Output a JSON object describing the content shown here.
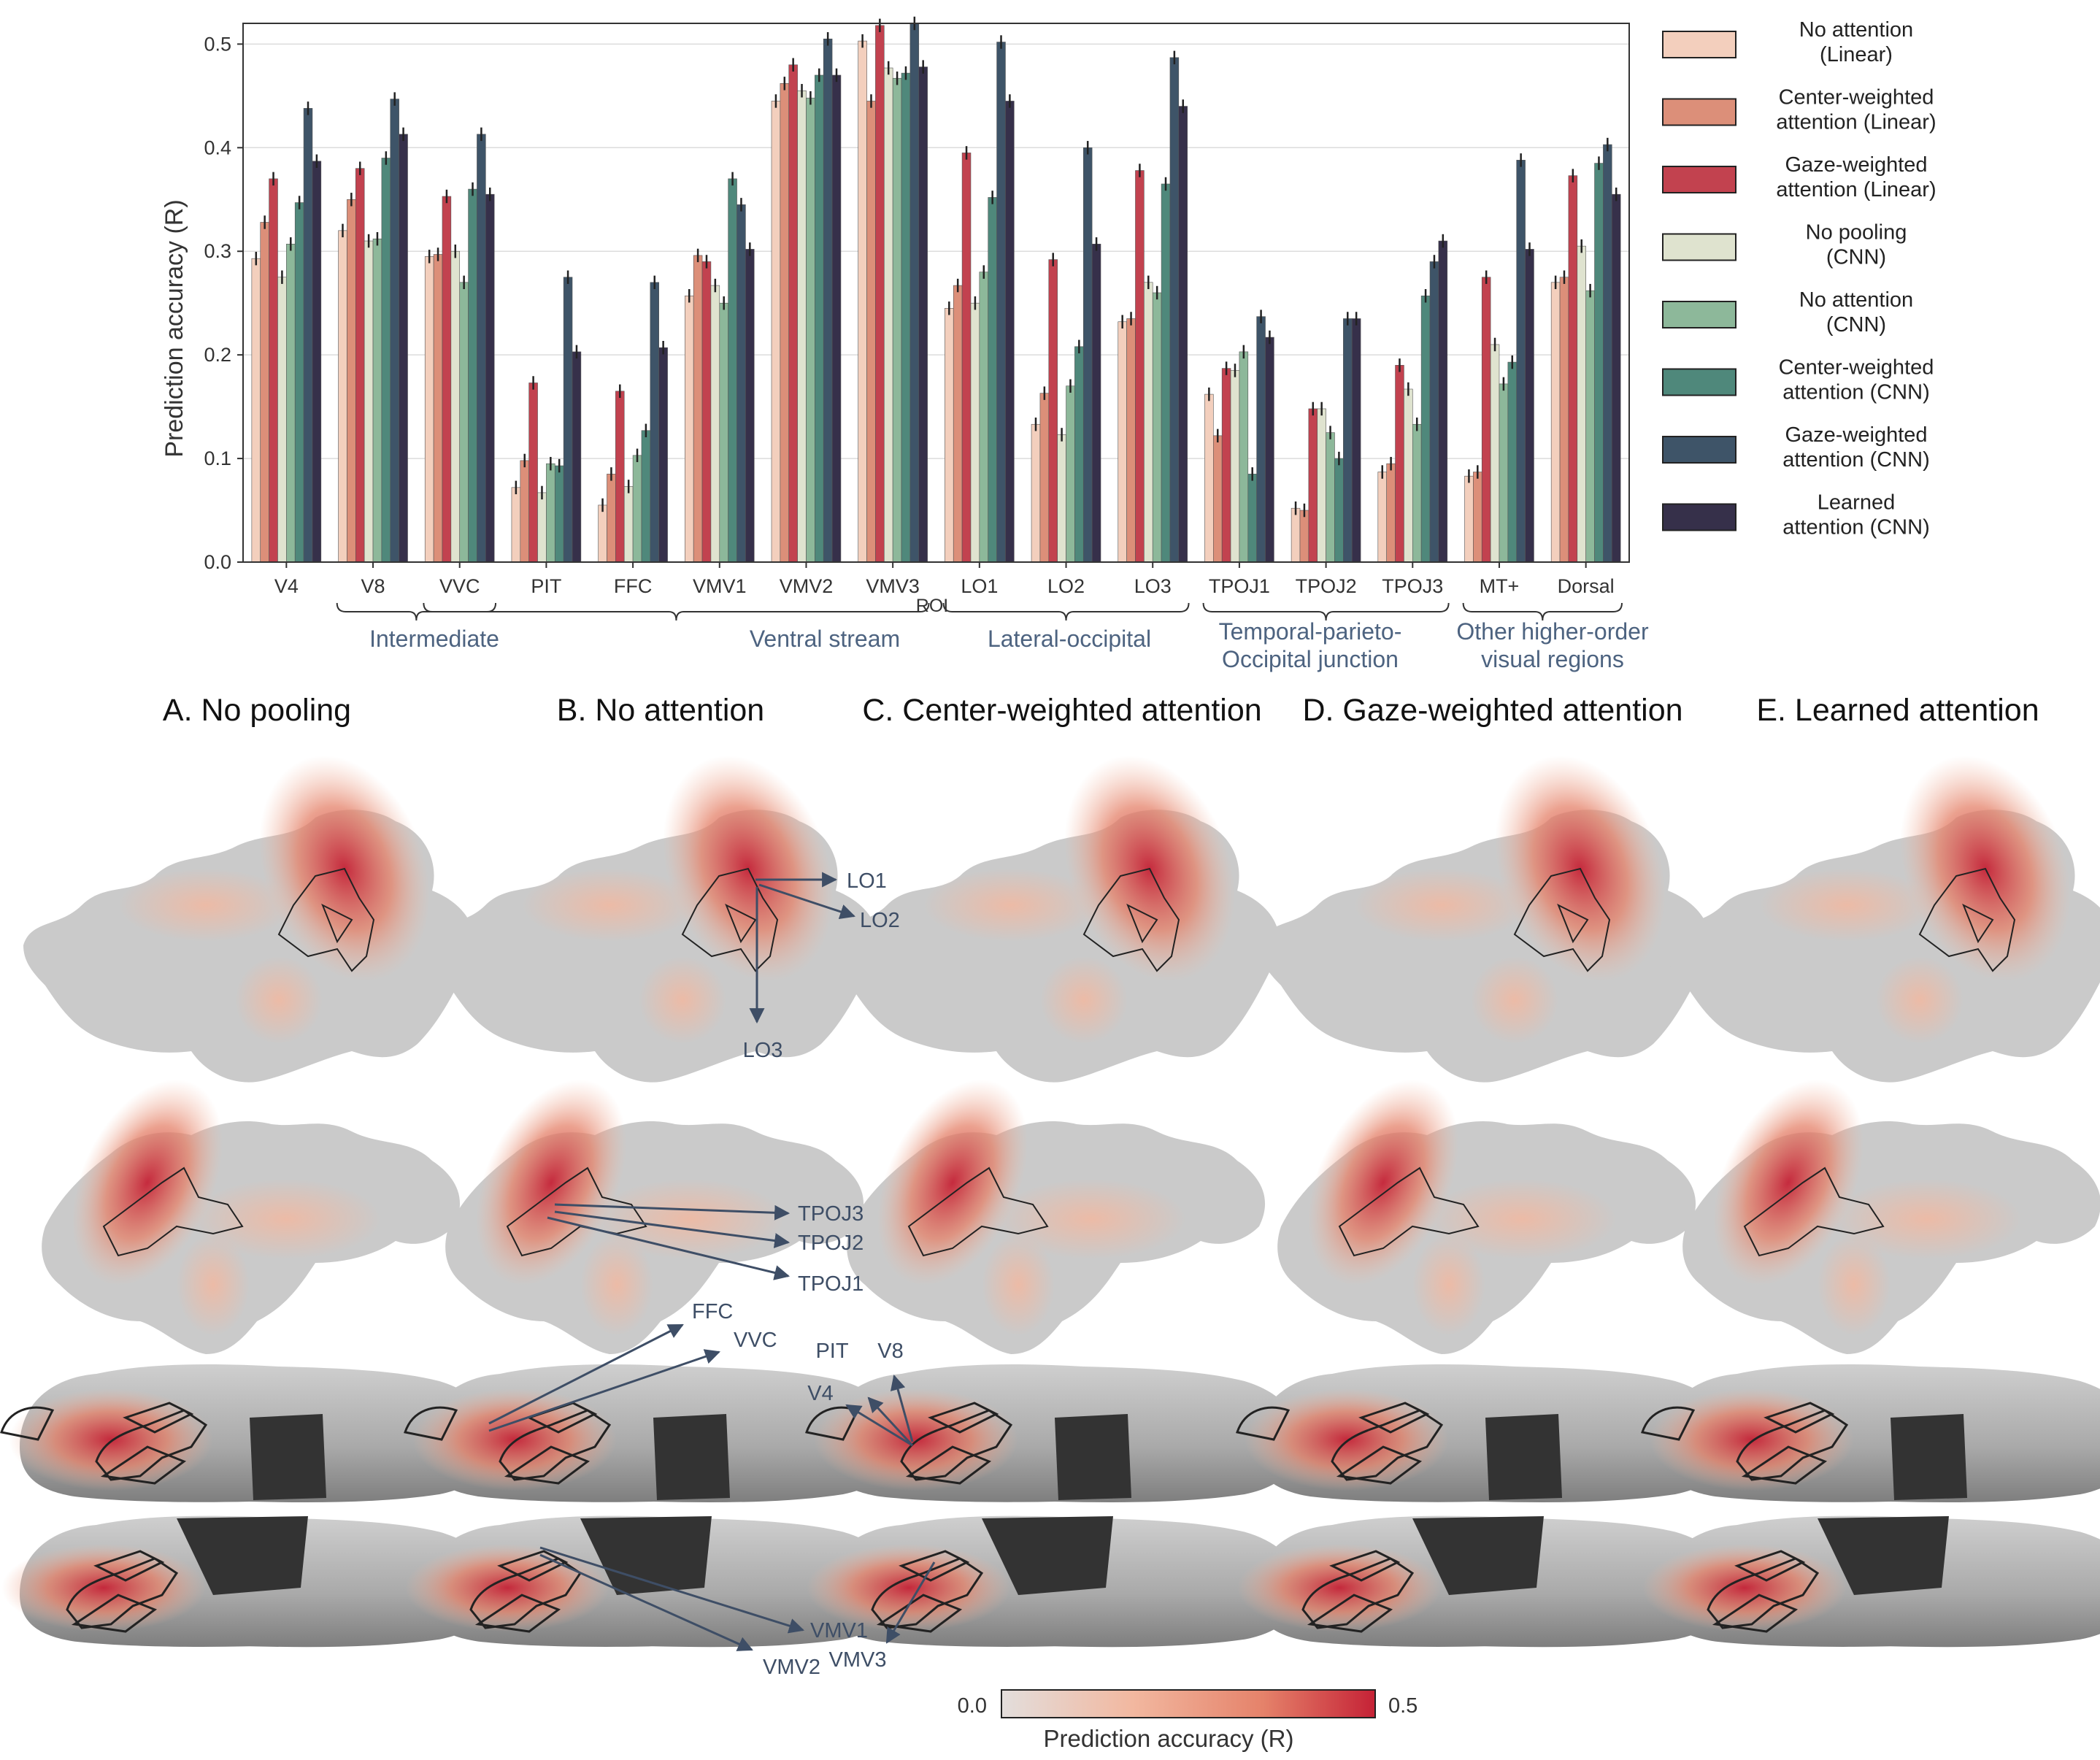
{
  "chart_data": {
    "type": "bar",
    "ylabel": "Prediction accuracy (R)",
    "xlabel": "ROI",
    "ylim": [
      0,
      0.5
    ],
    "yticks": [
      "0.0",
      "0.1",
      "0.2",
      "0.3",
      "0.4",
      "0.5"
    ],
    "grid": "horizontal",
    "legend_position": "right",
    "categories": [
      "V4",
      "V8",
      "VVC",
      "PIT",
      "FFC",
      "VMV1",
      "VMV2",
      "VMV3",
      "LO1",
      "LO2",
      "LO3",
      "TPOJ1",
      "TPOJ2",
      "TPOJ3",
      "MT+",
      "Dorsal"
    ],
    "series": [
      {
        "name": "No attention\n(Linear)",
        "color": "#f3cfbd",
        "values": [
          0.293,
          0.32,
          0.295,
          0.072,
          0.055,
          0.257,
          0.445,
          0.503,
          0.245,
          0.133,
          0.232,
          0.162,
          0.052,
          0.087,
          0.083,
          0.27
        ]
      },
      {
        "name": "Center-weighted\nattention (Linear)",
        "color": "#dc8f79",
        "values": [
          0.328,
          0.35,
          0.297,
          0.098,
          0.085,
          0.296,
          0.462,
          0.445,
          0.267,
          0.163,
          0.235,
          0.122,
          0.05,
          0.095,
          0.087,
          0.275
        ]
      },
      {
        "name": "Gaze-weighted\nattention (Linear)",
        "color": "#c2424f",
        "values": [
          0.37,
          0.38,
          0.353,
          0.173,
          0.165,
          0.29,
          0.48,
          0.518,
          0.395,
          0.292,
          0.378,
          0.187,
          0.148,
          0.19,
          0.275,
          0.373
        ]
      },
      {
        "name": "No pooling\n(CNN)",
        "color": "#dfe3cf",
        "values": [
          0.275,
          0.31,
          0.3,
          0.067,
          0.073,
          0.267,
          0.455,
          0.477,
          0.25,
          0.123,
          0.27,
          0.185,
          0.148,
          0.167,
          0.21,
          0.305
        ]
      },
      {
        "name": "No attention\n(CNN)",
        "color": "#8db89a",
        "values": [
          0.307,
          0.312,
          0.27,
          0.095,
          0.103,
          0.25,
          0.448,
          0.467,
          0.28,
          0.17,
          0.26,
          0.203,
          0.125,
          0.133,
          0.172,
          0.262
        ]
      },
      {
        "name": "Center-weighted\nattention (CNN)",
        "color": "#4f887b",
        "values": [
          0.347,
          0.39,
          0.36,
          0.093,
          0.127,
          0.37,
          0.47,
          0.472,
          0.352,
          0.208,
          0.365,
          0.085,
          0.1,
          0.257,
          0.193,
          0.385
        ]
      },
      {
        "name": "Gaze-weighted\nattention (CNN)",
        "color": "#3e5468",
        "values": [
          0.438,
          0.447,
          0.413,
          0.275,
          0.27,
          0.345,
          0.505,
          0.52,
          0.502,
          0.4,
          0.487,
          0.237,
          0.235,
          0.29,
          0.388,
          0.403
        ]
      },
      {
        "name": "Learned\nattention (CNN)",
        "color": "#36304a",
        "values": [
          0.387,
          0.413,
          0.355,
          0.203,
          0.207,
          0.302,
          0.47,
          0.478,
          0.445,
          0.307,
          0.44,
          0.217,
          0.235,
          0.31,
          0.302,
          0.355
        ]
      }
    ],
    "groups": [
      {
        "label": "Intermediate"
      },
      {
        "label": "Ventral stream"
      },
      {
        "label": "Lateral-occipital"
      },
      {
        "label": "Temporal-parieto-\nOccipital junction"
      },
      {
        "label": "Other higher-order\nvisual regions"
      }
    ]
  },
  "brain_panels": {
    "titles": [
      "A. No pooling",
      "B. No attention",
      "C. Center-weighted attention",
      "D. Gaze-weighted attention",
      "E. Learned attention"
    ],
    "annotations": {
      "lateral": [
        "LO1",
        "LO2",
        "LO3"
      ],
      "tpoj": [
        "TPOJ3",
        "TPOJ2",
        "TPOJ1"
      ],
      "ventral": [
        "FFC",
        "VVC",
        "PIT",
        "V8",
        "V4"
      ],
      "medial": [
        "VMV1",
        "VMV2",
        "VMV3"
      ]
    },
    "annotation_color": "#3e4e66"
  },
  "colorbar": {
    "min_label": "0.0",
    "max_label": "0.5",
    "label": "Prediction accuracy (R)",
    "colors": [
      "#e3dedc",
      "#f2b8a0",
      "#e5826a",
      "#c52236"
    ]
  }
}
